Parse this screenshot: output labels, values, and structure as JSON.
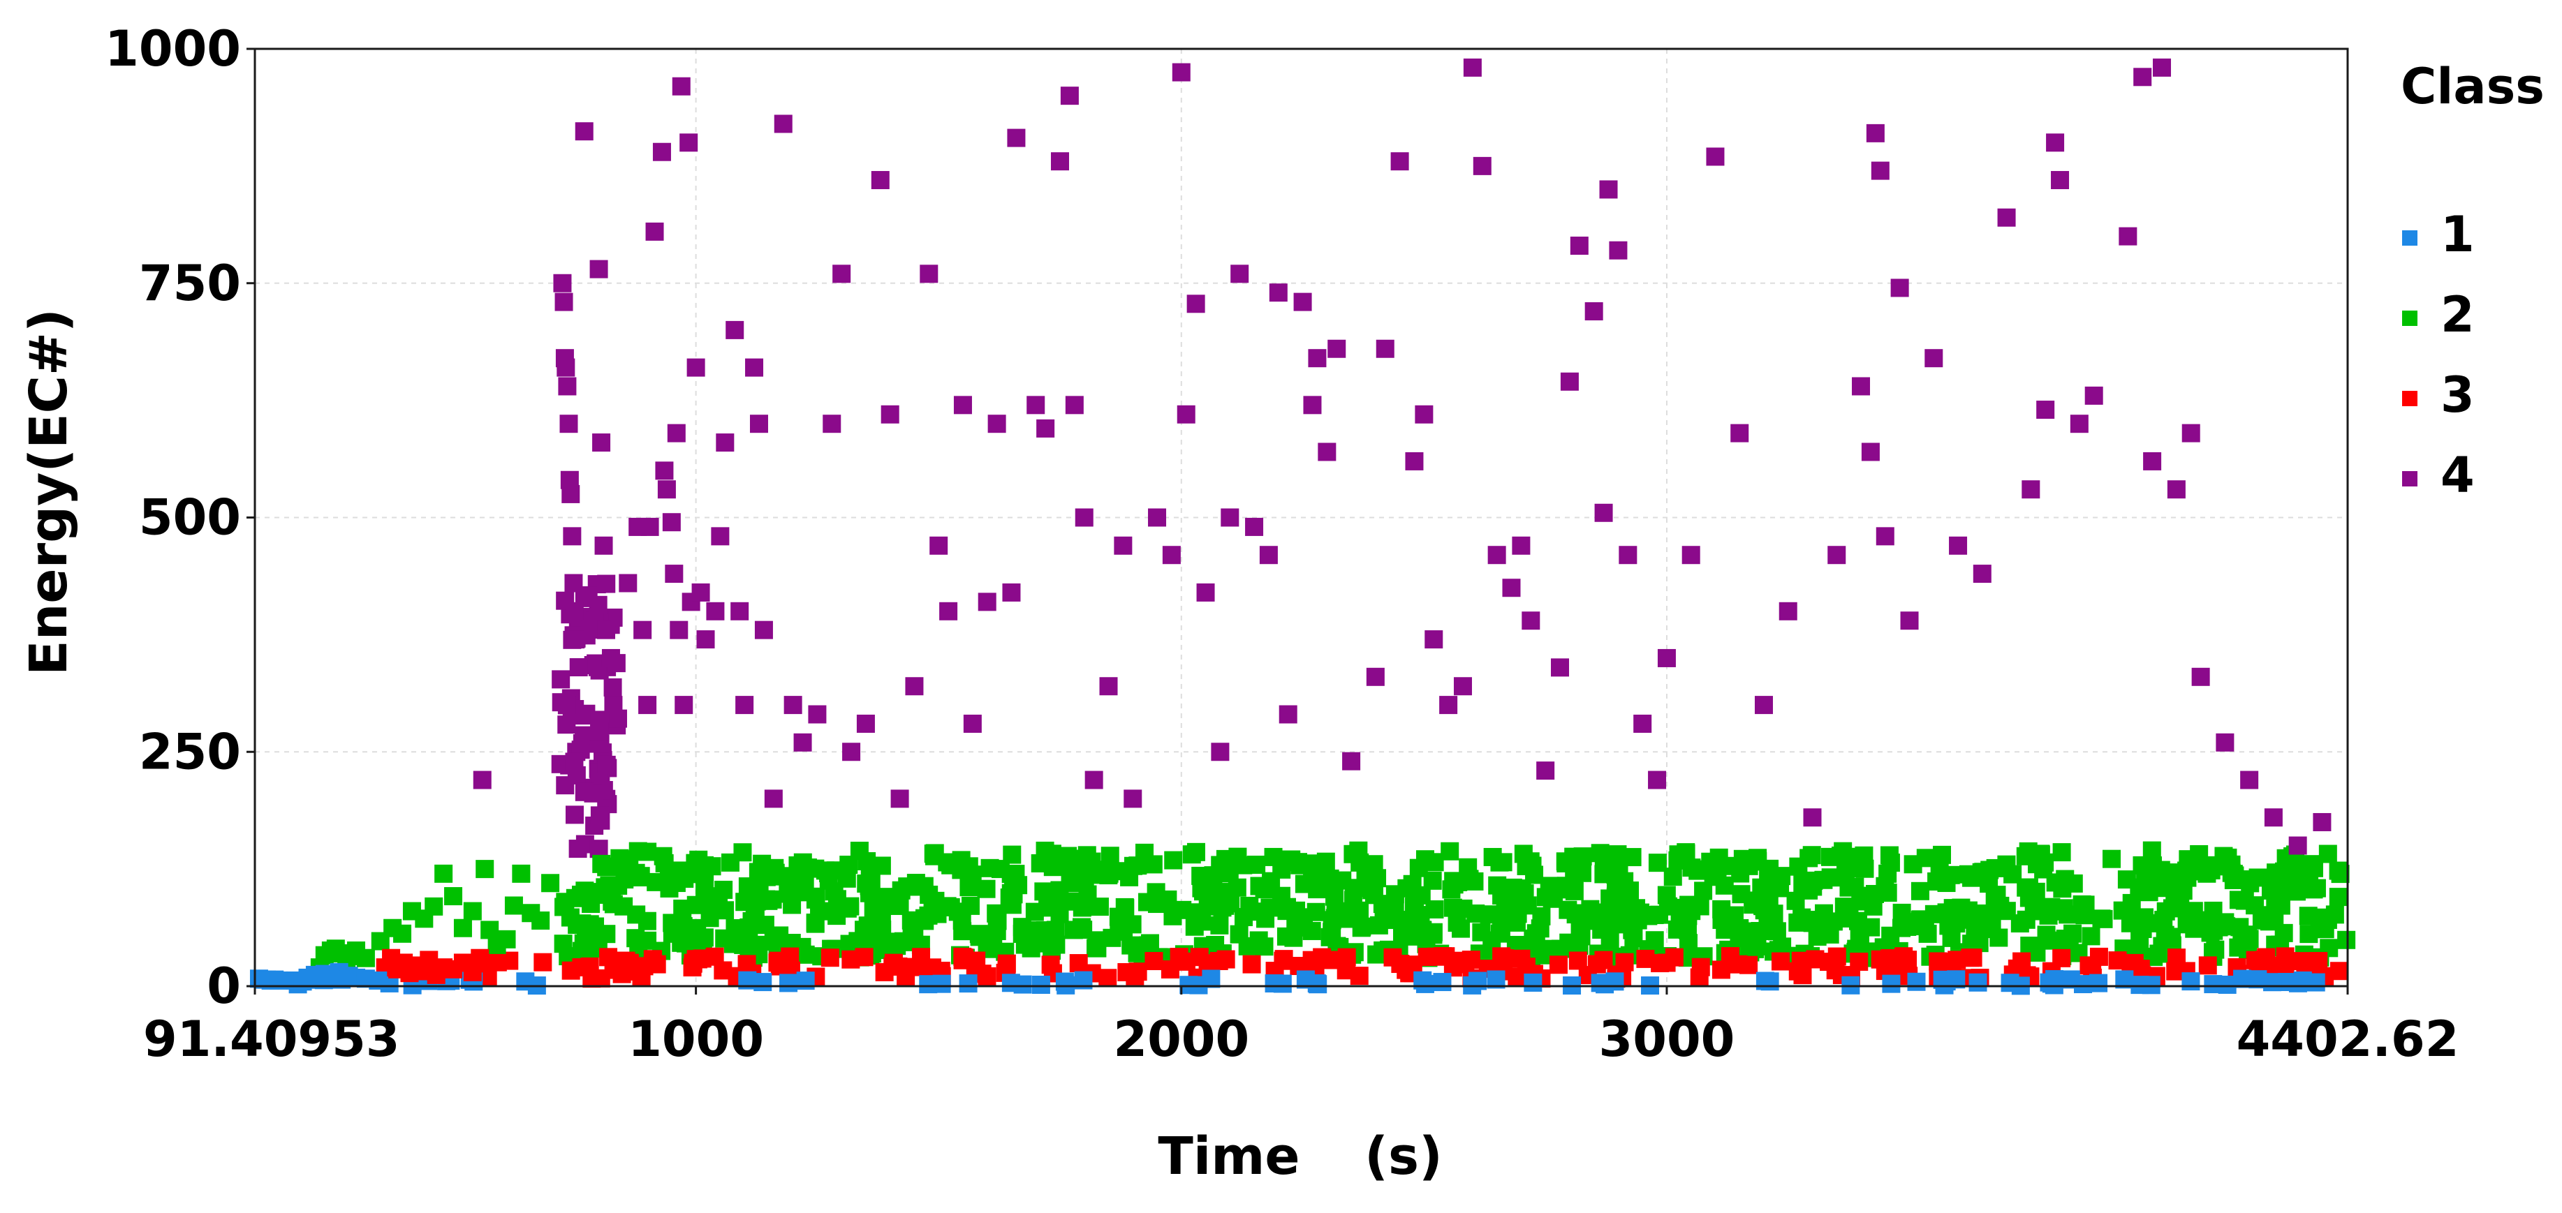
{
  "chart_data": {
    "type": "scatter",
    "xlabel": "Time",
    "xunit": "(s)",
    "ylabel": "Energy(EC#)",
    "xlim": [
      91.40953,
      4402.62
    ],
    "ylim": [
      0,
      1000
    ],
    "x_ticks": [
      {
        "value": 91.40953,
        "label": "91.40953"
      },
      {
        "value": 1000,
        "label": "1000"
      },
      {
        "value": 2000,
        "label": "2000"
      },
      {
        "value": 3000,
        "label": "3000"
      },
      {
        "value": 4402.62,
        "label": "4402.62"
      }
    ],
    "y_ticks": [
      {
        "value": 0,
        "label": "0"
      },
      {
        "value": 250,
        "label": "250"
      },
      {
        "value": 500,
        "label": "500"
      },
      {
        "value": 750,
        "label": "750"
      },
      {
        "value": 1000,
        "label": "1000"
      }
    ],
    "grid": true,
    "legend": {
      "title": "Class",
      "position": "right"
    },
    "series": [
      {
        "name": "1",
        "color": "#1e88e5",
        "band": {
          "x_start": 100,
          "x_end": 4402.62,
          "y_min": 0,
          "y_max": 8
        },
        "points": [
          [
            100,
            8
          ],
          [
            108,
            7
          ],
          [
            116,
            7
          ],
          [
            124,
            6
          ],
          [
            132,
            7
          ],
          [
            140,
            6
          ],
          [
            175,
            6
          ],
          [
            180,
            2
          ],
          [
            190,
            5
          ],
          [
            200,
            9
          ],
          [
            215,
            12
          ],
          [
            225,
            8
          ],
          [
            235,
            13
          ],
          [
            250,
            10
          ],
          [
            265,
            15
          ],
          [
            270,
            7
          ],
          [
            285,
            11
          ],
          [
            300,
            9
          ],
          [
            320,
            8
          ],
          [
            345,
            6
          ]
        ]
      },
      {
        "name": "2",
        "color": "#00c000",
        "band": {
          "x_start": 720,
          "x_end": 4402.62,
          "y_min": 30,
          "y_max": 145
        },
        "points": [
          [
            225,
            20
          ],
          [
            235,
            33
          ],
          [
            248,
            38
          ],
          [
            258,
            40
          ],
          [
            268,
            35
          ],
          [
            280,
            30
          ],
          [
            290,
            32
          ],
          [
            300,
            38
          ],
          [
            320,
            30
          ],
          [
            350,
            48
          ],
          [
            375,
            62
          ],
          [
            395,
            56
          ],
          [
            415,
            80
          ],
          [
            440,
            72
          ],
          [
            460,
            85
          ],
          [
            480,
            120
          ],
          [
            500,
            96
          ],
          [
            520,
            62
          ],
          [
            540,
            80
          ],
          [
            565,
            125
          ],
          [
            575,
            60
          ],
          [
            590,
            44
          ],
          [
            610,
            50
          ],
          [
            625,
            86
          ],
          [
            640,
            120
          ],
          [
            660,
            78
          ],
          [
            680,
            70
          ],
          [
            700,
            110
          ]
        ]
      },
      {
        "name": "3",
        "color": "#ff0000",
        "band": {
          "x_start": 560,
          "x_end": 4402.62,
          "y_min": 8,
          "y_max": 32
        },
        "points": [
          [
            360,
            20
          ],
          [
            372,
            30
          ],
          [
            385,
            18
          ],
          [
            398,
            25
          ],
          [
            410,
            14
          ],
          [
            425,
            22
          ],
          [
            438,
            16
          ],
          [
            450,
            28
          ],
          [
            465,
            12
          ],
          [
            480,
            20
          ],
          [
            500,
            18
          ],
          [
            520,
            25
          ],
          [
            540,
            15
          ],
          [
            555,
            30
          ]
        ]
      },
      {
        "name": "4",
        "color": "#8b0a8b",
        "band": {
          "x_start": 720,
          "x_end": 840,
          "y_min": 145,
          "y_max": 430
        },
        "points": [
          [
            560,
            220
          ],
          [
            725,
            750
          ],
          [
            728,
            730
          ],
          [
            730,
            670
          ],
          [
            732,
            660
          ],
          [
            735,
            640
          ],
          [
            738,
            600
          ],
          [
            740,
            540
          ],
          [
            742,
            525
          ],
          [
            745,
            480
          ],
          [
            748,
            430
          ],
          [
            750,
            400
          ],
          [
            752,
            370
          ],
          [
            770,
            912
          ],
          [
            800,
            765
          ],
          [
            805,
            580
          ],
          [
            810,
            470
          ],
          [
            815,
            380
          ],
          [
            825,
            350
          ],
          [
            830,
            300
          ],
          [
            860,
            430
          ],
          [
            880,
            490
          ],
          [
            890,
            380
          ],
          [
            900,
            300
          ],
          [
            905,
            490
          ],
          [
            915,
            805
          ],
          [
            930,
            890
          ],
          [
            935,
            550
          ],
          [
            940,
            530
          ],
          [
            950,
            495
          ],
          [
            955,
            440
          ],
          [
            960,
            590
          ],
          [
            965,
            380
          ],
          [
            970,
            960
          ],
          [
            975,
            300
          ],
          [
            985,
            900
          ],
          [
            990,
            410
          ],
          [
            1000,
            660
          ],
          [
            1010,
            420
          ],
          [
            1020,
            370
          ],
          [
            1040,
            400
          ],
          [
            1050,
            480
          ],
          [
            1060,
            580
          ],
          [
            1080,
            700
          ],
          [
            1090,
            400
          ],
          [
            1100,
            300
          ],
          [
            1120,
            660
          ],
          [
            1130,
            600
          ],
          [
            1140,
            380
          ],
          [
            1160,
            200
          ],
          [
            1180,
            920
          ],
          [
            1200,
            300
          ],
          [
            1220,
            260
          ],
          [
            1250,
            290
          ],
          [
            1280,
            600
          ],
          [
            1300,
            760
          ],
          [
            1320,
            250
          ],
          [
            1350,
            280
          ],
          [
            1380,
            860
          ],
          [
            1400,
            610
          ],
          [
            1420,
            200
          ],
          [
            1450,
            320
          ],
          [
            1480,
            760
          ],
          [
            1500,
            470
          ],
          [
            1520,
            400
          ],
          [
            1550,
            620
          ],
          [
            1570,
            280
          ],
          [
            1600,
            410
          ],
          [
            1620,
            600
          ],
          [
            1650,
            420
          ],
          [
            1660,
            905
          ],
          [
            1700,
            620
          ],
          [
            1720,
            595
          ],
          [
            1750,
            880
          ],
          [
            1770,
            950
          ],
          [
            1780,
            620
          ],
          [
            1800,
            500
          ],
          [
            1820,
            220
          ],
          [
            1850,
            320
          ],
          [
            1880,
            470
          ],
          [
            1900,
            200
          ],
          [
            1950,
            500
          ],
          [
            1980,
            460
          ],
          [
            2000,
            975
          ],
          [
            2010,
            610
          ],
          [
            2030,
            728
          ],
          [
            2050,
            420
          ],
          [
            2080,
            250
          ],
          [
            2100,
            500
          ],
          [
            2120,
            760
          ],
          [
            2150,
            490
          ],
          [
            2180,
            460
          ],
          [
            2200,
            740
          ],
          [
            2220,
            290
          ],
          [
            2250,
            730
          ],
          [
            2270,
            620
          ],
          [
            2280,
            670
          ],
          [
            2300,
            570
          ],
          [
            2320,
            680
          ],
          [
            2350,
            240
          ],
          [
            2400,
            330
          ],
          [
            2420,
            680
          ],
          [
            2450,
            880
          ],
          [
            2480,
            560
          ],
          [
            2500,
            610
          ],
          [
            2520,
            370
          ],
          [
            2550,
            300
          ],
          [
            2580,
            320
          ],
          [
            2600,
            980
          ],
          [
            2620,
            875
          ],
          [
            2650,
            460
          ],
          [
            2680,
            425
          ],
          [
            2700,
            470
          ],
          [
            2720,
            390
          ],
          [
            2750,
            230
          ],
          [
            2780,
            340
          ],
          [
            2800,
            645
          ],
          [
            2820,
            790
          ],
          [
            2850,
            720
          ],
          [
            2870,
            505
          ],
          [
            2880,
            850
          ],
          [
            2900,
            785
          ],
          [
            2920,
            460
          ],
          [
            2950,
            280
          ],
          [
            2980,
            220
          ],
          [
            3000,
            350
          ],
          [
            3050,
            460
          ],
          [
            3100,
            885
          ],
          [
            3150,
            590
          ],
          [
            3200,
            300
          ],
          [
            3250,
            400
          ],
          [
            3300,
            180
          ],
          [
            3350,
            460
          ],
          [
            3400,
            640
          ],
          [
            3420,
            570
          ],
          [
            3430,
            910
          ],
          [
            3440,
            870
          ],
          [
            3450,
            480
          ],
          [
            3480,
            745
          ],
          [
            3500,
            390
          ],
          [
            3550,
            670
          ],
          [
            3600,
            470
          ],
          [
            3650,
            440
          ],
          [
            3700,
            820
          ],
          [
            3750,
            530
          ],
          [
            3780,
            615
          ],
          [
            3800,
            900
          ],
          [
            3810,
            860
          ],
          [
            3850,
            600
          ],
          [
            3880,
            630
          ],
          [
            3950,
            800
          ],
          [
            3980,
            970
          ],
          [
            4000,
            560
          ],
          [
            4020,
            980
          ],
          [
            4050,
            530
          ],
          [
            4080,
            590
          ],
          [
            4100,
            330
          ],
          [
            4150,
            260
          ],
          [
            4200,
            220
          ],
          [
            4250,
            180
          ],
          [
            4300,
            150
          ],
          [
            4350,
            175
          ]
        ]
      }
    ]
  }
}
